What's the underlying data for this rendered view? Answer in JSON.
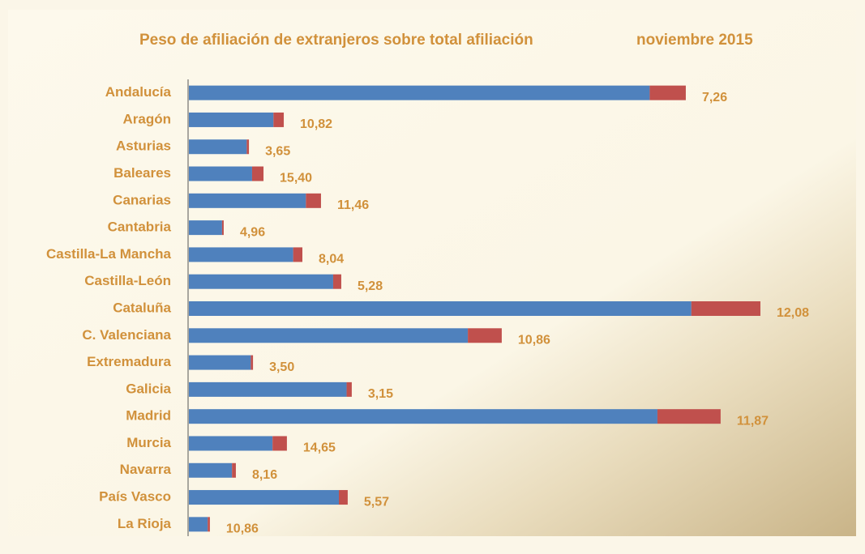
{
  "chart_data": {
    "type": "stacked_hbar",
    "title": "Peso de afiliación de extranjeros sobre total afiliación",
    "subtitle": "noviembre  2015",
    "categories": [
      "Andalucía",
      "Aragón",
      "Asturias",
      "Baleares",
      "Canarias",
      "Cantabria",
      "Castilla-La Mancha",
      "Castilla-León",
      "Cataluña",
      "C. Valenciana",
      "Extremadura",
      "Galicia",
      "Madrid",
      "Murcia",
      "Navarra",
      "País Vasco",
      "La Rioja"
    ],
    "series": [
      {
        "color": "#4f81bd",
        "values": [
          2501,
          459,
          314,
          343,
          635,
          180,
          566,
          783,
          2727,
          1514,
          336,
          856,
          2543,
          454,
          234,
          814,
          102
        ]
      },
      {
        "color": "#c0504d",
        "values": [
          196,
          56,
          12,
          62,
          82,
          9,
          50,
          44,
          375,
          184,
          12,
          28,
          343,
          78,
          21,
          48,
          12
        ]
      }
    ],
    "shares": {
      "values": [
        7.26,
        10.82,
        3.65,
        15.4,
        11.46,
        4.96,
        8.04,
        5.28,
        12.08,
        10.86,
        3.5,
        3.15,
        11.87,
        14.65,
        8.16,
        5.57,
        10.86
      ],
      "value_labels": [
        "7,26",
        "10,82",
        "3,65",
        "15,40",
        "11,46",
        "4,96",
        "8,04",
        "5,28",
        "12,08",
        "10,86",
        "3,50",
        "3,15",
        "11,87",
        "14,65",
        "8,16",
        "5,57",
        "10,86"
      ]
    }
  }
}
